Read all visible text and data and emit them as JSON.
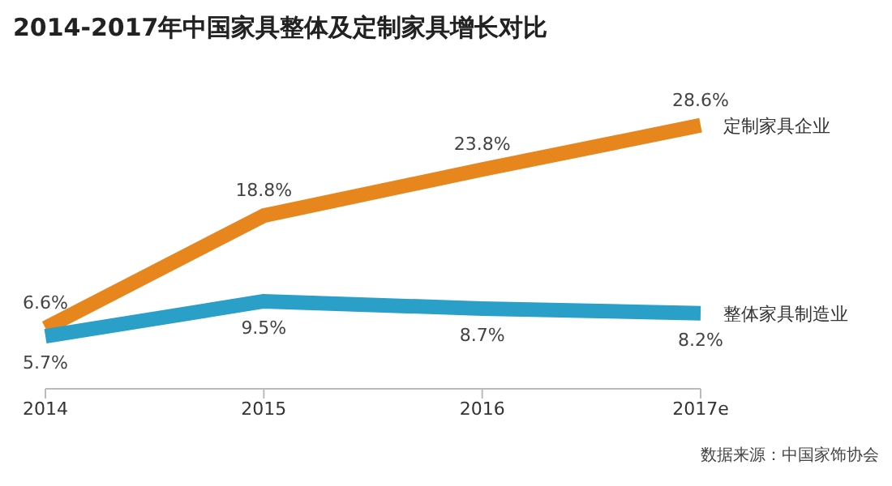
{
  "chart_data": {
    "type": "line",
    "title": "2014-2017年中国家具整体及定制家具增长对比",
    "categories": [
      "2014",
      "2015",
      "2016",
      "2017e"
    ],
    "series": [
      {
        "name": "定制家具企业",
        "color": "#e8861e",
        "values": [
          6.6,
          18.8,
          23.8,
          28.6
        ],
        "value_labels": [
          "6.6%",
          "18.8%",
          "23.8%",
          "28.6%"
        ]
      },
      {
        "name": "整体家具制造业",
        "color": "#2aa0c8",
        "values": [
          5.7,
          9.5,
          8.7,
          8.2
        ],
        "value_labels": [
          "5.7%",
          "9.5%",
          "8.7%",
          "8.2%"
        ]
      }
    ],
    "marker": "none",
    "line_style": "solid",
    "annotations": [
      "数据来源：中国家饰协会"
    ]
  }
}
